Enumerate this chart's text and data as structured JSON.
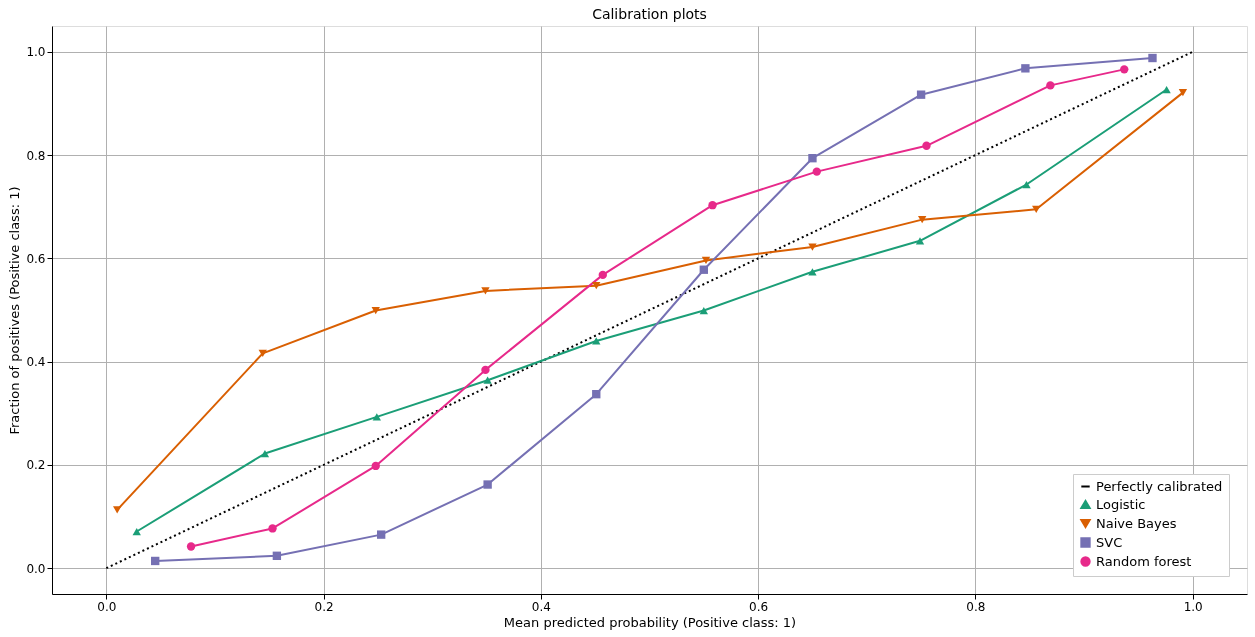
{
  "chart_data": {
    "type": "line",
    "title": "Calibration plots",
    "xlabel": "Mean predicted probability (Positive class: 1)",
    "ylabel": "Fraction of positives (Positive class: 1)",
    "xlim": [
      -0.05,
      1.05
    ],
    "ylim": [
      -0.05,
      1.05
    ],
    "xticks": [
      {
        "value": 0,
        "label": "0.0"
      },
      0.2,
      0.4,
      0.6,
      0.8,
      {
        "value": 1,
        "label": "1.0"
      }
    ],
    "yticks": [
      {
        "value": 0,
        "label": "0.0"
      },
      0.2,
      0.4,
      0.6,
      0.8,
      {
        "value": 1,
        "label": "1.0"
      }
    ],
    "grid": true,
    "legend": "bottom right",
    "series": [
      {
        "name": "Perfectly calibrated",
        "color": "#000000",
        "line_style": "dotted",
        "marker": "none",
        "x": [
          0,
          1
        ],
        "values": [
          0,
          1
        ]
      },
      {
        "name": "Logistic",
        "color": "#1b9e77",
        "marker": "triangle",
        "line_style": "solid",
        "x": [
          0.028,
          0.146,
          0.249,
          0.351,
          0.451,
          0.55,
          0.65,
          0.749,
          0.847,
          0.976
        ],
        "values": [
          0.071,
          0.222,
          0.293,
          0.364,
          0.44,
          0.499,
          0.574,
          0.634,
          0.743,
          0.927
        ]
      },
      {
        "name": "Naive Bayes",
        "color": "#d95f02",
        "marker": "triangle-down",
        "line_style": "solid",
        "x": [
          0.01,
          0.144,
          0.248,
          0.349,
          0.451,
          0.552,
          0.65,
          0.751,
          0.856,
          0.991
        ],
        "values": [
          0.113,
          0.416,
          0.499,
          0.537,
          0.547,
          0.596,
          0.622,
          0.675,
          0.695,
          0.921
        ]
      },
      {
        "name": "SVC",
        "color": "#7570b3",
        "marker": "square",
        "line_style": "solid",
        "x": [
          0.045,
          0.157,
          0.253,
          0.351,
          0.451,
          0.55,
          0.65,
          0.75,
          0.846,
          0.963
        ],
        "values": [
          0.014,
          0.024,
          0.065,
          0.162,
          0.337,
          0.578,
          0.794,
          0.917,
          0.968,
          0.988
        ]
      },
      {
        "name": "Random forest",
        "color": "#e7298a",
        "marker": "circle",
        "line_style": "solid",
        "x": [
          0.078,
          0.153,
          0.248,
          0.349,
          0.457,
          0.558,
          0.654,
          0.755,
          0.869,
          0.937
        ],
        "values": [
          0.042,
          0.077,
          0.198,
          0.384,
          0.568,
          0.703,
          0.768,
          0.818,
          0.935,
          0.966
        ]
      }
    ]
  }
}
